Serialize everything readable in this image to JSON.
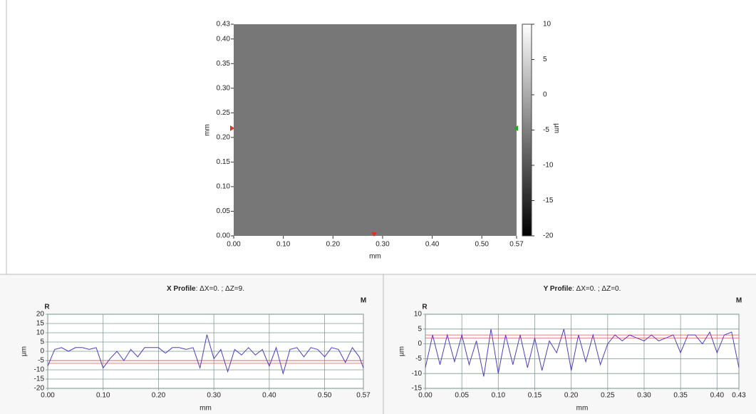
{
  "chart_data": [
    {
      "type": "heatmap",
      "x_label": "mm",
      "y_label": "mm",
      "z_label": "µm",
      "xlim": [
        0,
        0.57
      ],
      "xticks": [
        {
          "value": 0,
          "label": "0.00"
        },
        {
          "value": 0.1,
          "label": "0.10"
        },
        {
          "value": 0.2,
          "label": "0.20"
        },
        {
          "value": 0.3,
          "label": "0.30"
        },
        {
          "value": 0.4,
          "label": "0.40"
        },
        {
          "value": 0.5,
          "label": "0.50"
        },
        0.57
      ],
      "ylim": [
        0,
        0.43
      ],
      "yticks": [
        {
          "value": 0,
          "label": "0.00"
        },
        0.05,
        {
          "value": 0.1,
          "label": "0.10"
        },
        0.15,
        {
          "value": 0.2,
          "label": "0.20"
        },
        0.25,
        {
          "value": 0.3,
          "label": "0.30"
        },
        0.35,
        {
          "value": 0.4,
          "label": "0.40"
        },
        0.43
      ],
      "zlim": [
        -20,
        10
      ],
      "zticks": [
        10,
        5,
        0,
        -5,
        -10,
        -15,
        -20
      ]
    },
    {
      "type": "line",
      "title": "X Profile",
      "subtitle": ": ΔX=0. ; ΔZ=9.",
      "left_marker": "R",
      "right_marker": "M",
      "x_label": "mm",
      "y_label": "µm",
      "xlim": [
        0,
        0.57
      ],
      "xticks": [
        {
          "value": 0,
          "label": "0.00"
        },
        {
          "value": 0.1,
          "label": "0.10"
        },
        {
          "value": 0.2,
          "label": "0.20"
        },
        {
          "value": 0.3,
          "label": "0.30"
        },
        {
          "value": 0.4,
          "label": "0.40"
        },
        {
          "value": 0.5,
          "label": "0.50"
        },
        0.57
      ],
      "ylim": [
        -20,
        20
      ],
      "yticks": [
        -20,
        -15,
        -10,
        -5,
        0,
        5,
        10,
        15,
        20
      ],
      "reference_lines": [
        -5,
        -6.5
      ],
      "color": "#4b3fc2",
      "x": [
        0,
        0.0125,
        0.025,
        0.0375,
        0.05,
        0.0625,
        0.075,
        0.0875,
        0.1,
        0.1125,
        0.125,
        0.1375,
        0.15,
        0.1625,
        0.175,
        0.1875,
        0.2,
        0.2125,
        0.225,
        0.2375,
        0.25,
        0.2625,
        0.275,
        0.2875,
        0.3,
        0.3125,
        0.325,
        0.3375,
        0.35,
        0.3625,
        0.375,
        0.3875,
        0.4,
        0.4125,
        0.425,
        0.4375,
        0.45,
        0.4625,
        0.475,
        0.4875,
        0.5,
        0.5125,
        0.525,
        0.5375,
        0.55,
        0.5625,
        0.57
      ],
      "values": [
        -8,
        1,
        2,
        0,
        2,
        2,
        1,
        2,
        -9,
        -4,
        0,
        -5,
        1,
        -3,
        2,
        2,
        2,
        -1,
        2,
        2,
        1,
        2,
        -9,
        9,
        -4,
        1,
        -11,
        1,
        -2,
        2,
        -2,
        1,
        -8,
        2,
        -12,
        1,
        2,
        -3,
        2,
        1,
        -3,
        2,
        1,
        -6,
        2,
        -3,
        -9
      ]
    },
    {
      "type": "line",
      "title": "Y Profile",
      "subtitle": ": ΔX=0. ; ΔZ=0.",
      "left_marker": "R",
      "right_marker": "M",
      "x_label": "mm",
      "y_label": "µm",
      "xlim": [
        0,
        0.43
      ],
      "xticks": [
        {
          "value": 0,
          "label": "0.00"
        },
        0.05,
        {
          "value": 0.1,
          "label": "0.10"
        },
        0.15,
        {
          "value": 0.2,
          "label": "0.20"
        },
        0.25,
        {
          "value": 0.3,
          "label": "0.30"
        },
        0.35,
        {
          "value": 0.4,
          "label": "0.40"
        },
        0.43
      ],
      "ylim": [
        -15,
        10
      ],
      "yticks": [
        -15,
        -10,
        -5,
        0,
        5,
        10
      ],
      "reference_lines": [
        3,
        2
      ],
      "color": "#4b3fc2",
      "x": [
        0,
        0.01,
        0.02,
        0.03,
        0.04,
        0.05,
        0.06,
        0.07,
        0.08,
        0.09,
        0.1,
        0.11,
        0.12,
        0.13,
        0.14,
        0.15,
        0.16,
        0.17,
        0.18,
        0.19,
        0.2,
        0.21,
        0.22,
        0.23,
        0.24,
        0.25,
        0.26,
        0.27,
        0.28,
        0.29,
        0.3,
        0.31,
        0.32,
        0.33,
        0.34,
        0.35,
        0.36,
        0.37,
        0.38,
        0.39,
        0.4,
        0.41,
        0.42,
        0.43
      ],
      "values": [
        -8,
        3,
        -7,
        3,
        -6,
        3,
        -7,
        1,
        -11,
        5,
        -10,
        3,
        -7,
        3,
        -8,
        2,
        -9,
        1,
        -3,
        5,
        -9,
        3,
        -6,
        3,
        -7,
        0,
        3,
        1,
        3,
        2,
        1,
        3,
        1,
        2,
        3,
        -3,
        3,
        3,
        0,
        4,
        -3,
        3,
        4,
        -8
      ]
    }
  ]
}
